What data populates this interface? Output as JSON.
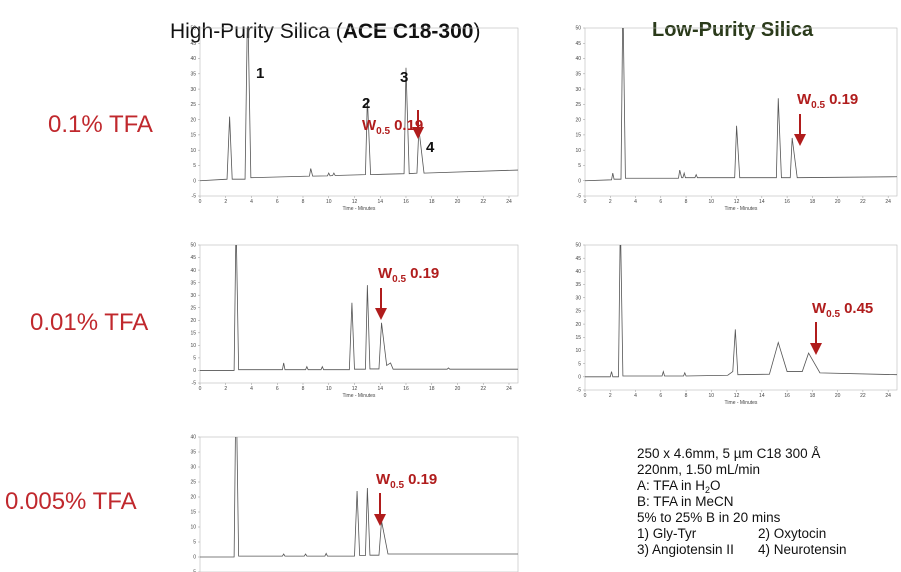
{
  "column_titles": [
    {
      "text": "High-Purity Silica (",
      "bold": "ACE C18-300",
      "after": ")"
    },
    {
      "bold": "Low-Purity Silica"
    }
  ],
  "row_labels": [
    "0.1% TFA",
    "0.01% TFA",
    "0.005% TFA"
  ],
  "chart_data": [
    {
      "type": "line",
      "color": "#555555",
      "xlabel": "Time - Minutes",
      "xlim": [
        0,
        24.7
      ],
      "ylim": [
        -5,
        50
      ],
      "xticks": [
        0,
        2,
        4,
        6,
        8,
        10,
        12,
        14,
        16,
        18,
        20,
        22,
        24
      ],
      "yticks": [
        -5,
        0,
        5,
        10,
        15,
        20,
        25,
        30,
        35,
        40,
        45,
        50
      ],
      "x": [
        0,
        2.1,
        2.3,
        2.5,
        3.5,
        3.7,
        3.95,
        8.5,
        8.6,
        8.75,
        9.9,
        10,
        10.1,
        10.3,
        10.4,
        10.5,
        12.85,
        13,
        13.25,
        15.85,
        16,
        16.25,
        16.85,
        17,
        17.4,
        24.7
      ],
      "values": [
        0,
        0.5,
        21,
        0.5,
        0.5,
        60,
        1,
        1.5,
        4,
        1.5,
        1.6,
        2.5,
        1.6,
        1.7,
        2.5,
        1.7,
        2,
        27,
        2,
        2.3,
        37,
        2.3,
        2.5,
        17,
        2.5,
        3.5
      ],
      "annotation": {
        "text": "W",
        "sub": "0.5",
        "value": "0.19"
      },
      "peak_labels": [
        "1",
        "2",
        "3",
        "4"
      ]
    },
    {
      "type": "line",
      "color": "#555555",
      "xlabel": "Time - Minutes",
      "xlim": [
        0,
        24.7
      ],
      "ylim": [
        -5,
        50
      ],
      "xticks": [
        0,
        2,
        4,
        6,
        8,
        10,
        12,
        14,
        16,
        18,
        20,
        22,
        24
      ],
      "yticks": [
        -5,
        0,
        5,
        10,
        15,
        20,
        25,
        30,
        35,
        40,
        45,
        50
      ],
      "x": [
        0,
        2.1,
        2.2,
        2.3,
        2.85,
        3,
        3.2,
        7.4,
        7.5,
        7.65,
        7.75,
        7.85,
        7.95,
        8.7,
        8.8,
        8.9,
        11.85,
        12,
        12.25,
        15.15,
        15.3,
        15.55,
        16.25,
        16.4,
        16.8,
        24.7
      ],
      "values": [
        0,
        0.3,
        2.5,
        0.5,
        0.5,
        60,
        0.8,
        0.8,
        3.5,
        1,
        1,
        2.5,
        1,
        1,
        2,
        1,
        1,
        18,
        1,
        1,
        27,
        1,
        1,
        14,
        1,
        1.3
      ],
      "annotation": {
        "text": "W",
        "sub": "0.5",
        "value": "0.19"
      }
    },
    {
      "type": "line",
      "color": "#555555",
      "xlabel": "Time - Minutes",
      "xlim": [
        0,
        24.7
      ],
      "ylim": [
        -5,
        50
      ],
      "xticks": [
        0,
        2,
        4,
        6,
        8,
        10,
        12,
        14,
        16,
        18,
        20,
        22,
        24
      ],
      "yticks": [
        -5,
        0,
        5,
        10,
        15,
        20,
        25,
        30,
        35,
        40,
        45,
        50
      ],
      "x": [
        0,
        2.65,
        2.8,
        3,
        6.4,
        6.5,
        6.6,
        8.2,
        8.3,
        8.4,
        9.4,
        9.5,
        9.6,
        11.6,
        11.8,
        12,
        12.85,
        13,
        13.2,
        13.9,
        14.1,
        14.5,
        14.8,
        15,
        19.2,
        19.3,
        19.4,
        24.7
      ],
      "values": [
        0,
        0,
        60,
        0.3,
        0.3,
        3,
        0.3,
        0.3,
        1.5,
        0.3,
        0.3,
        1.5,
        0.3,
        0.3,
        27,
        0.5,
        0.5,
        34,
        0.6,
        0.6,
        19,
        2,
        3,
        0.5,
        0.5,
        1,
        0.5,
        0.5
      ],
      "annotation": {
        "text": "W",
        "sub": "0.5",
        "value": "0.19"
      }
    },
    {
      "type": "line",
      "color": "#555555",
      "xlabel": "Time - Minutes",
      "xlim": [
        0,
        24.7
      ],
      "ylim": [
        -5,
        50
      ],
      "xticks": [
        0,
        2,
        4,
        6,
        8,
        10,
        12,
        14,
        16,
        18,
        20,
        22,
        24
      ],
      "yticks": [
        -5,
        0,
        5,
        10,
        15,
        20,
        25,
        30,
        35,
        40,
        45,
        50
      ],
      "x": [
        0,
        2,
        2.1,
        2.2,
        2.65,
        2.8,
        3,
        6.1,
        6.2,
        6.3,
        7.8,
        7.9,
        8,
        11.3,
        11.7,
        11.9,
        12.1,
        14.6,
        15.3,
        16,
        17.2,
        17.7,
        18.6,
        24.7
      ],
      "values": [
        0,
        0,
        2,
        0,
        0,
        60,
        0.3,
        0.3,
        2,
        0.3,
        0.3,
        1.5,
        0.3,
        0.6,
        2,
        18,
        0.8,
        1,
        13,
        2,
        2,
        9,
        1.5,
        0.8
      ],
      "annotation": {
        "text": "W",
        "sub": "0.5",
        "value": "0.45"
      }
    },
    {
      "type": "line",
      "color": "#555555",
      "xlim": [
        0,
        24.7
      ],
      "ylim": [
        -5,
        40
      ],
      "yticks": [
        -5,
        0,
        5,
        10,
        15,
        20,
        25,
        30,
        35,
        40
      ],
      "x": [
        0,
        2.65,
        2.8,
        3,
        6.4,
        6.5,
        6.6,
        8.1,
        8.2,
        8.3,
        9.7,
        9.8,
        9.9,
        12,
        12.2,
        12.4,
        12.85,
        13,
        13.2,
        13.9,
        14.1,
        14.6,
        24.7
      ],
      "values": [
        0,
        0,
        60,
        0.3,
        0.3,
        1,
        0.3,
        0.3,
        1,
        0.3,
        0.3,
        1.2,
        0.3,
        0.3,
        22,
        0.5,
        0.5,
        23,
        0.6,
        0.6,
        12,
        1,
        1
      ],
      "annotation": {
        "text": "W",
        "sub": "0.5",
        "value": "0.19"
      }
    }
  ],
  "conditions": {
    "lines": [
      {
        "text": "250 x 4.6mm, 5 µm C18 300 Å"
      },
      {
        "text": "220nm, 1.50 mL/min"
      },
      {
        "text": "A: TFA in H",
        "sub": "2",
        "after": "O"
      },
      {
        "text": "B: TFA in MeCN"
      },
      {
        "text": "5% to 25% B in 20 mins"
      }
    ],
    "peaks": [
      "1) Gly-Tyr",
      "2) Oxytocin",
      "3) Angiotensin II",
      "4) Neurotensin"
    ]
  }
}
